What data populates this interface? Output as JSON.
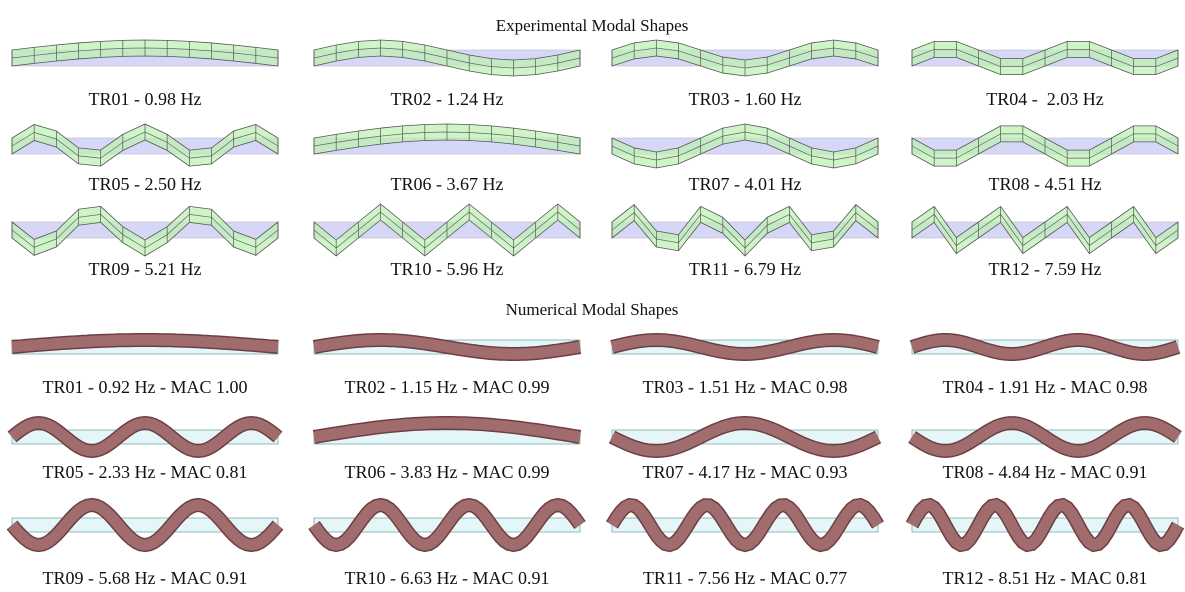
{
  "experimental": {
    "title": "Experimental Modal Shapes",
    "modes": [
      "TR01 - 0.98 Hz",
      "TR02 - 1.24 Hz",
      "TR03 - 1.60 Hz",
      "TR04 -  2.03 Hz",
      "TR05 - 2.50 Hz",
      "TR06 - 3.67 Hz",
      "TR07 - 4.01 Hz",
      "TR08 - 4.51 Hz",
      "TR09 - 5.21 Hz",
      "TR10 - 5.96 Hz",
      "TR11 - 6.79 Hz",
      "TR12 - 7.59 Hz"
    ]
  },
  "numerical": {
    "title": "Numerical Modal Shapes",
    "modes": [
      "TR01 - 0.92 Hz - MAC 1.00",
      "TR02 - 1.15 Hz - MAC 0.99",
      "TR03 - 1.51 Hz - MAC 0.98",
      "TR04 - 1.91 Hz - MAC 0.98",
      "TR05 - 2.33 Hz - MAC 0.81",
      "TR06 - 3.83 Hz - MAC 0.99",
      "TR07 - 4.17 Hz - MAC 0.93",
      "TR08 - 4.84 Hz - MAC 0.91",
      "TR09 - 5.68 Hz - MAC 0.91",
      "TR10 - 6.63 Hz - MAC 0.91",
      "TR11 - 7.56 Hz - MAC 0.77",
      "TR12 - 8.51 Hz - MAC 0.81"
    ]
  }
}
